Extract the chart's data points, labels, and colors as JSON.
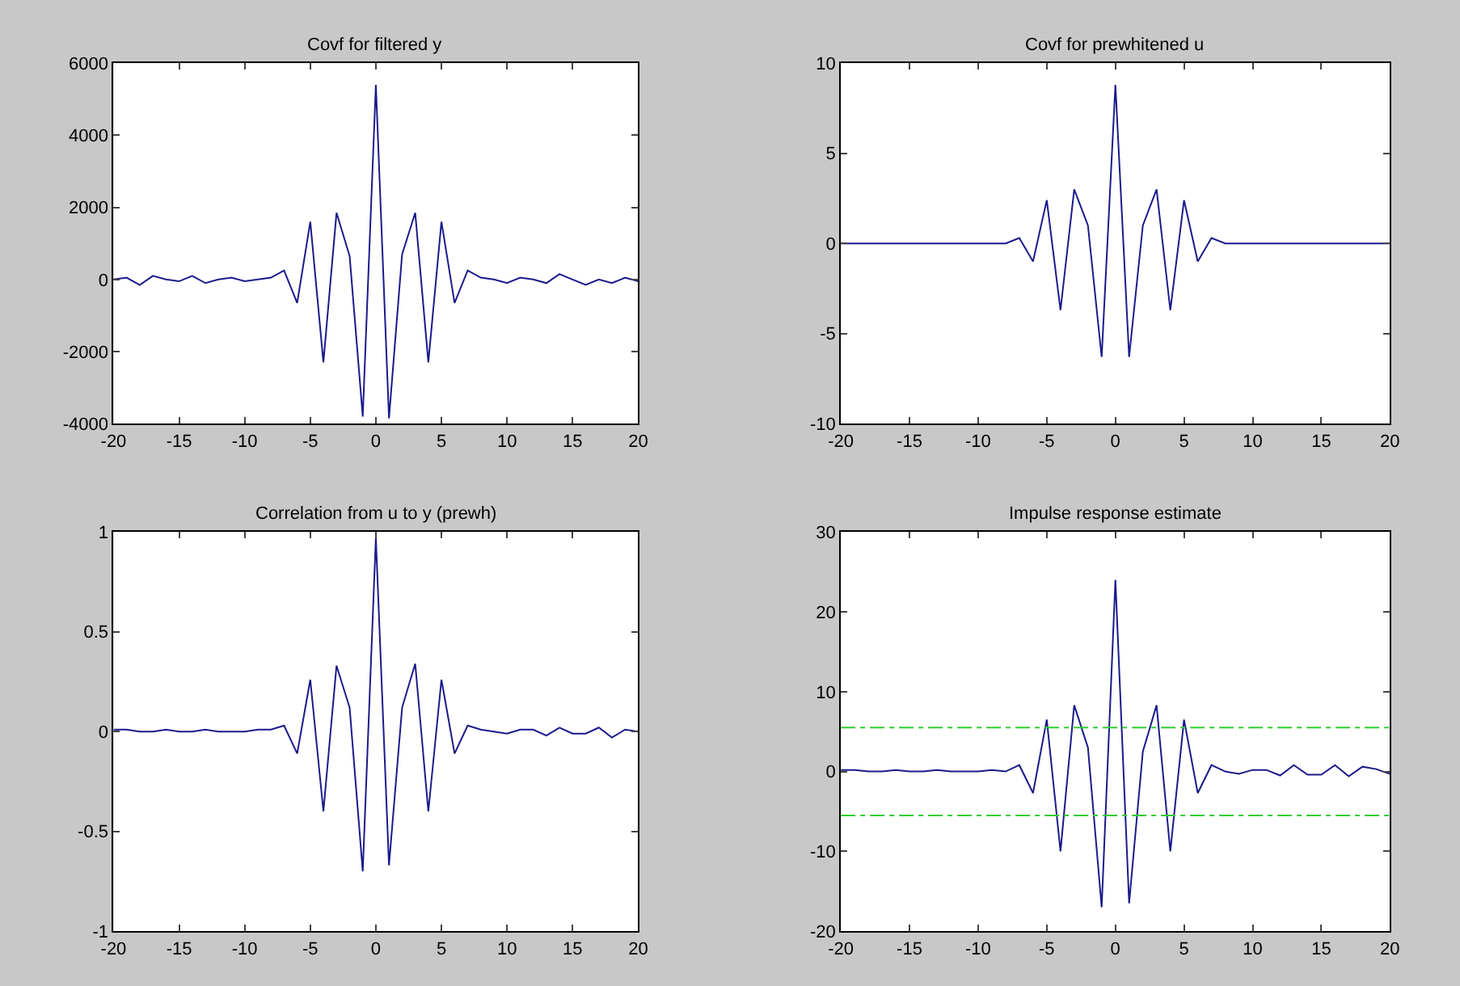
{
  "chart_data": [
    {
      "type": "line",
      "title": "Covf for filtered y",
      "x": [
        -20,
        -19,
        -18,
        -17,
        -16,
        -15,
        -14,
        -13,
        -12,
        -11,
        -10,
        -9,
        -8,
        -7,
        -6,
        -5,
        -4,
        -3,
        -2,
        -1,
        0,
        1,
        2,
        3,
        4,
        5,
        6,
        7,
        8,
        9,
        10,
        11,
        12,
        13,
        14,
        15,
        16,
        17,
        18,
        19,
        20
      ],
      "series": [
        {
          "color": "#1a1a8c",
          "values": [
            0,
            50,
            -150,
            100,
            0,
            -50,
            100,
            -100,
            0,
            50,
            -50,
            0,
            50,
            250,
            -650,
            1600,
            -2300,
            1850,
            650,
            -3800,
            5400,
            -3850,
            700,
            1850,
            -2300,
            1600,
            -650,
            250,
            50,
            0,
            -100,
            50,
            0,
            -100,
            150,
            0,
            -150,
            0,
            -100,
            50,
            -50
          ]
        }
      ],
      "xlim": [
        -20,
        20
      ],
      "xticks": [
        -20,
        -15,
        -10,
        -5,
        0,
        5,
        10,
        15,
        20
      ],
      "ylim": [
        -4000,
        6000
      ],
      "yticks": [
        -4000,
        -2000,
        0,
        2000,
        4000,
        6000
      ],
      "line_style": "solid"
    },
    {
      "type": "line",
      "title": "Covf for prewhitened u",
      "x": [
        -20,
        -19,
        -18,
        -17,
        -16,
        -15,
        -14,
        -13,
        -12,
        -11,
        -10,
        -9,
        -8,
        -7,
        -6,
        -5,
        -4,
        -3,
        -2,
        -1,
        0,
        1,
        2,
        3,
        4,
        5,
        6,
        7,
        8,
        9,
        10,
        11,
        12,
        13,
        14,
        15,
        16,
        17,
        18,
        19,
        20
      ],
      "series": [
        {
          "color": "#1a1a8c",
          "values": [
            0,
            0,
            0,
            0,
            0,
            0,
            0,
            0,
            0,
            0,
            0,
            0,
            0,
            0.3,
            -1,
            2.4,
            -3.7,
            3,
            1,
            -6.3,
            8.8,
            -6.3,
            1,
            3,
            -3.7,
            2.4,
            -1,
            0.3,
            0,
            0,
            0,
            0,
            0,
            0,
            0,
            0,
            0,
            0,
            0,
            0,
            0
          ]
        }
      ],
      "xlim": [
        -20,
        20
      ],
      "xticks": [
        -20,
        -15,
        -10,
        -5,
        0,
        5,
        10,
        15,
        20
      ],
      "ylim": [
        -10,
        10
      ],
      "yticks": [
        -10,
        -5,
        0,
        5,
        10
      ],
      "line_style": "solid"
    },
    {
      "type": "line",
      "title": "Correlation from u to y (prewh)",
      "x": [
        -20,
        -19,
        -18,
        -17,
        -16,
        -15,
        -14,
        -13,
        -12,
        -11,
        -10,
        -9,
        -8,
        -7,
        -6,
        -5,
        -4,
        -3,
        -2,
        -1,
        0,
        1,
        2,
        3,
        4,
        5,
        6,
        7,
        8,
        9,
        10,
        11,
        12,
        13,
        14,
        15,
        16,
        17,
        18,
        19,
        20
      ],
      "series": [
        {
          "color": "#1a1a8c",
          "values": [
            0.01,
            0.01,
            0,
            0,
            0.01,
            0,
            0,
            0.01,
            0,
            0,
            0,
            0.01,
            0.01,
            0.03,
            -0.11,
            0.26,
            -0.4,
            0.33,
            0.12,
            -0.7,
            0.97,
            -0.67,
            0.12,
            0.34,
            -0.4,
            0.26,
            -0.11,
            0.03,
            0.01,
            0,
            -0.01,
            0.01,
            0.01,
            -0.02,
            0.02,
            -0.01,
            -0.01,
            0.02,
            -0.03,
            0.01,
            0
          ]
        }
      ],
      "xlim": [
        -20,
        20
      ],
      "xticks": [
        -20,
        -15,
        -10,
        -5,
        0,
        5,
        10,
        15,
        20
      ],
      "ylim": [
        -1,
        1
      ],
      "yticks": [
        -1,
        -0.5,
        0,
        0.5,
        1
      ],
      "line_style": "solid"
    },
    {
      "type": "line",
      "title": "Impulse response estimate",
      "x": [
        -20,
        -19,
        -18,
        -17,
        -16,
        -15,
        -14,
        -13,
        -12,
        -11,
        -10,
        -9,
        -8,
        -7,
        -6,
        -5,
        -4,
        -3,
        -2,
        -1,
        0,
        1,
        2,
        3,
        4,
        5,
        6,
        7,
        8,
        9,
        10,
        11,
        12,
        13,
        14,
        15,
        16,
        17,
        18,
        19,
        20
      ],
      "series": [
        {
          "color": "#1a1a8c",
          "values": [
            0.2,
            0.2,
            0,
            0,
            0.2,
            0,
            0,
            0.2,
            0,
            0,
            0,
            0.2,
            0,
            0.8,
            -2.7,
            6.5,
            -10,
            8.3,
            3,
            -17,
            24,
            -16.5,
            2.5,
            8.3,
            -10,
            6.5,
            -2.7,
            0.8,
            0,
            -0.3,
            0.2,
            0.2,
            -0.5,
            0.8,
            -0.4,
            -0.4,
            0.8,
            -0.6,
            0.6,
            0.3,
            -0.3
          ]
        }
      ],
      "xlim": [
        -20,
        20
      ],
      "xticks": [
        -20,
        -15,
        -10,
        -5,
        0,
        5,
        10,
        15,
        20
      ],
      "ylim": [
        -20,
        30
      ],
      "yticks": [
        -20,
        -10,
        0,
        10,
        20,
        30
      ],
      "line_style": "solid",
      "ref_lines": [
        {
          "axis": "y",
          "value": 5.5,
          "color": "#33cc33",
          "line_style": "dashdot"
        },
        {
          "axis": "y",
          "value": -5.5,
          "color": "#33cc33",
          "line_style": "dashdot"
        }
      ]
    }
  ]
}
